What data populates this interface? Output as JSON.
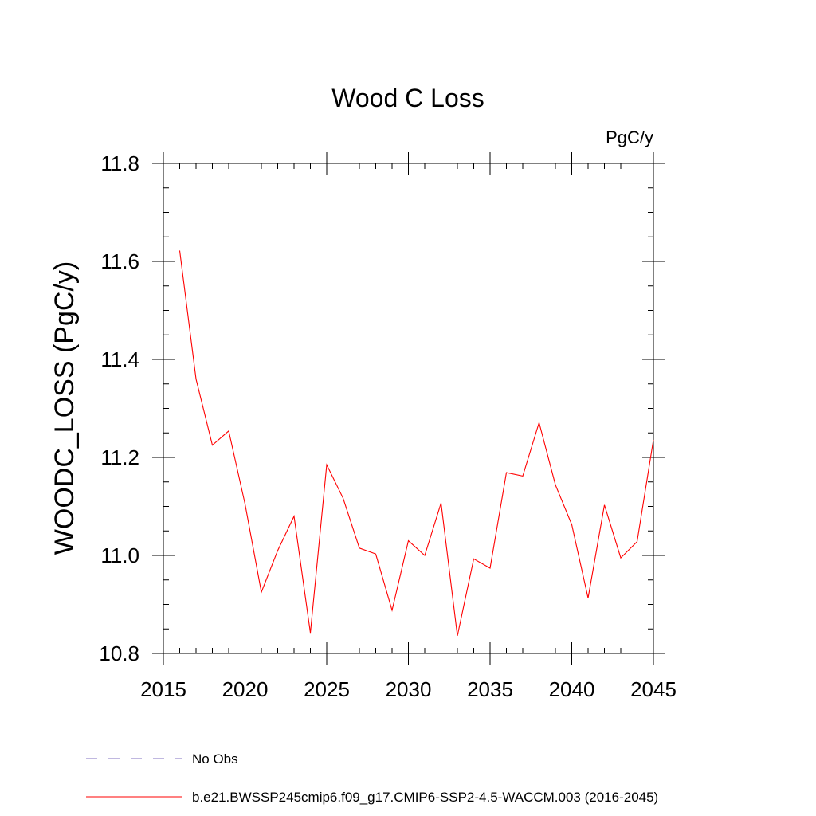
{
  "chart_data": {
    "type": "line",
    "title": "Wood C Loss",
    "units_label": "PgC/y",
    "xlabel": "",
    "ylabel": "WOODC_LOSS  (PgC/y)",
    "xlim": [
      2015,
      2045
    ],
    "ylim": [
      10.8,
      11.8
    ],
    "x_major_ticks": [
      2015,
      2020,
      2025,
      2030,
      2035,
      2040,
      2045
    ],
    "x_tick_labels": [
      "2015",
      "2020",
      "2025",
      "2030",
      "2035",
      "2040",
      "2045"
    ],
    "y_major_ticks": [
      10.8,
      11.0,
      11.2,
      11.4,
      11.6,
      11.8
    ],
    "y_tick_labels": [
      "10.8",
      "11.0",
      "11.2",
      "11.4",
      "11.6",
      "11.8"
    ],
    "grid": false,
    "series": [
      {
        "name": "b.e21.BWSSP245cmip6.f09_g17.CMIP6-SSP2-4.5-WACCM.003 (2016-2045)",
        "color": "#ff0000",
        "style": "solid",
        "x": [
          2016,
          2017,
          2018,
          2019,
          2020,
          2021,
          2022,
          2023,
          2024,
          2025,
          2026,
          2027,
          2028,
          2029,
          2030,
          2031,
          2032,
          2033,
          2034,
          2035,
          2036,
          2037,
          2038,
          2039,
          2040,
          2041,
          2042,
          2043,
          2044,
          2045
        ],
        "y": [
          11.622,
          11.36,
          11.225,
          11.254,
          11.105,
          10.925,
          11.01,
          11.08,
          10.842,
          11.185,
          11.117,
          11.015,
          11.003,
          10.888,
          11.03,
          11.0,
          11.107,
          10.836,
          10.993,
          10.974,
          11.169,
          11.162,
          11.271,
          11.144,
          11.063,
          10.913,
          11.103,
          10.995,
          11.028,
          11.236
        ]
      }
    ]
  },
  "legend": [
    {
      "label": "No Obs",
      "color": "#8070c0",
      "style": "dashed"
    },
    {
      "label": "b.e21.BWSSP245cmip6.f09_g17.CMIP6-SSP2-4.5-WACCM.003 (2016-2045)",
      "color": "#ff0000",
      "style": "solid"
    }
  ]
}
